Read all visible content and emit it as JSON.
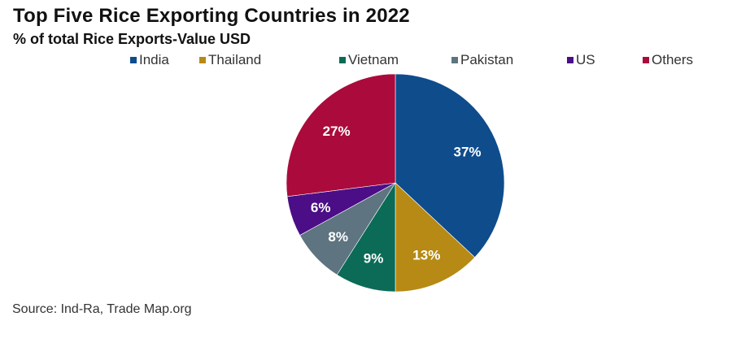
{
  "chart_data": {
    "type": "pie",
    "title": "Top Five Rice Exporting Countries in 2022",
    "subtitle": "% of total Rice Exports-Value USD",
    "legend_position": "top",
    "start_angle_deg": 0,
    "direction": "clockwise",
    "categories": [
      "India",
      "Thailand",
      "Vietnam",
      "Pakistan",
      "US",
      "Others"
    ],
    "values": [
      37,
      13,
      9,
      8,
      6,
      27
    ],
    "labels": [
      "37%",
      "13%",
      "9%",
      "8%",
      "6%",
      "27%"
    ],
    "colors": [
      "#0E4C8C",
      "#B68A14",
      "#0B6B57",
      "#5E7480",
      "#4B0E86",
      "#AA0B3C"
    ],
    "source": "Source: Ind-Ra, Trade Map.org"
  },
  "header": {
    "title": "Top Five Rice Exporting Countries in 2022",
    "subtitle": "% of total Rice Exports-Value USD"
  },
  "legend": [
    {
      "label": "India",
      "color": "#0E4C8C"
    },
    {
      "label": "Thailand",
      "color": "#B68A14"
    },
    {
      "label": "Vietnam",
      "color": "#0B6B57"
    },
    {
      "label": "Pakistan",
      "color": "#5E7480"
    },
    {
      "label": "US",
      "color": "#4B0E86"
    },
    {
      "label": "Others",
      "color": "#AA0B3C"
    }
  ],
  "footer": {
    "source": "Source: Ind-Ra, Trade Map.org"
  }
}
